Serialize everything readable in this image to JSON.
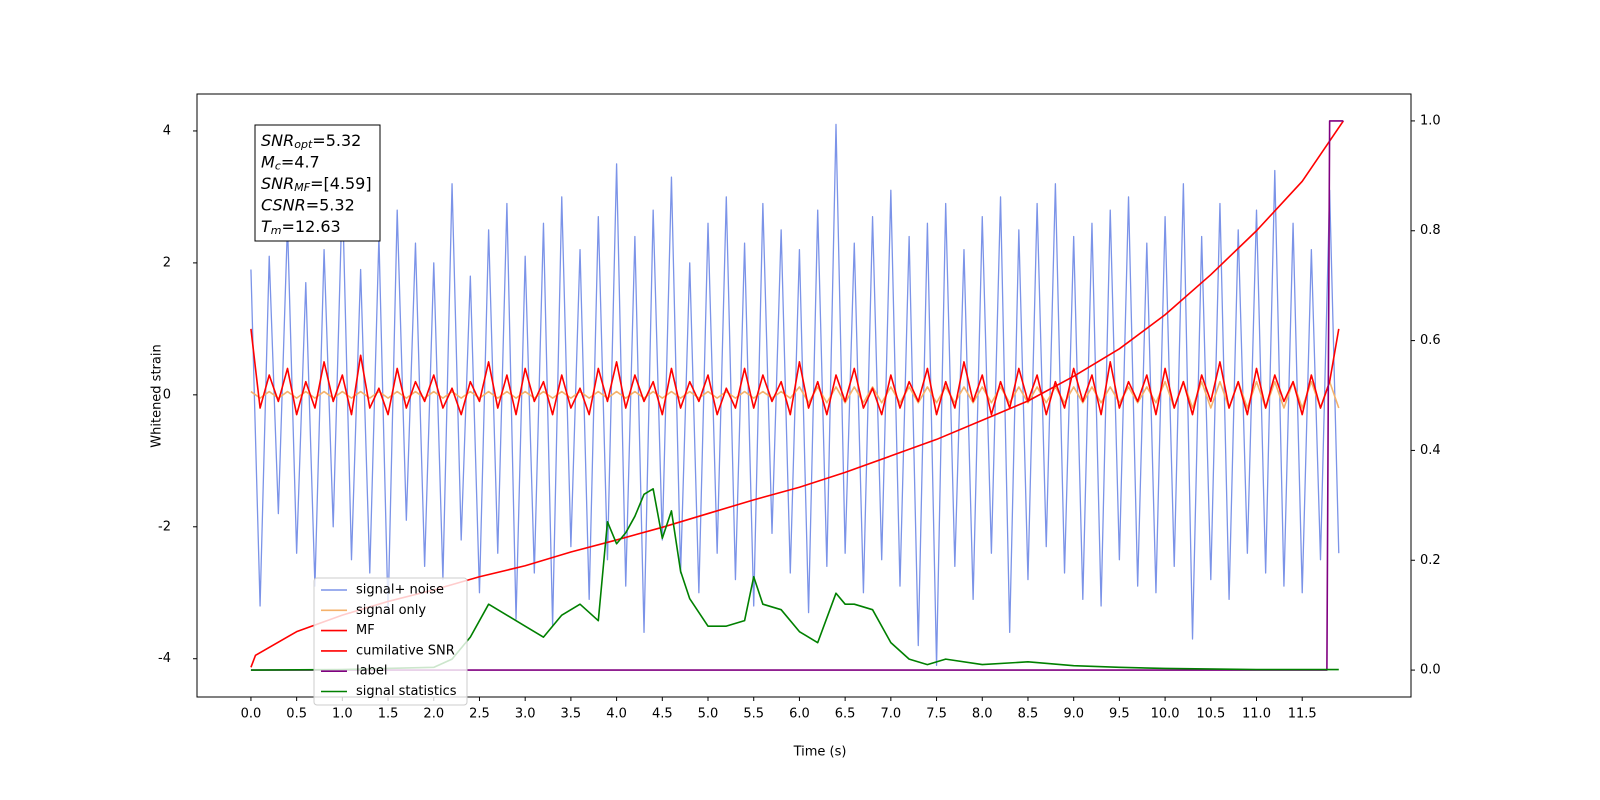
{
  "chart_data": {
    "type": "line",
    "xlabel": "Time (s)",
    "ylabel": "Whitened strain",
    "xlim": [
      -0.59,
      12.69
    ],
    "ylim": [
      -4.58,
      4.56
    ],
    "y2lim": [
      -0.049,
      1.049
    ],
    "xticks": [
      {
        "value": 0,
        "label": "0.0"
      },
      0.5,
      {
        "value": 1,
        "label": "1.0"
      },
      1.5,
      {
        "value": 2,
        "label": "2.0"
      },
      2.5,
      {
        "value": 3,
        "label": "3.0"
      },
      3.5,
      {
        "value": 4,
        "label": "4.0"
      },
      4.5,
      {
        "value": 5,
        "label": "5.0"
      },
      5.5,
      {
        "value": 6,
        "label": "6.0"
      },
      6.5,
      {
        "value": 7,
        "label": "7.0"
      },
      7.5,
      {
        "value": 8,
        "label": "8.0"
      },
      8.5,
      {
        "value": 9,
        "label": "9.0"
      },
      9.5,
      {
        "value": 10,
        "label": "10.0"
      },
      10.5,
      {
        "value": 11,
        "label": "11.0"
      },
      11.5
    ],
    "yticks": [
      -4,
      -2,
      0,
      2,
      4
    ],
    "y2ticks": [
      {
        "value": 0,
        "label": "0.0"
      },
      0.2,
      0.4,
      0.6,
      0.8,
      {
        "value": 1,
        "label": "1.0"
      }
    ],
    "legend": "lower left",
    "annotation": [
      {
        "symbol": "SNR",
        "subscript": "opt",
        "text": "=5.32"
      },
      {
        "symbol": "M",
        "subscript": "c",
        "text": "=4.7"
      },
      {
        "symbol": "SNR",
        "subscript": "MF",
        "text": "=[4.59]"
      },
      {
        "symbol": "CSNR",
        "text": "=5.32"
      },
      {
        "symbol": "T",
        "subscript": "m",
        "text": "=12.63"
      }
    ],
    "x": [
      0,
      0.1,
      0.2,
      0.3,
      0.4,
      0.5,
      0.6,
      0.7,
      0.8,
      0.9,
      1,
      1.1,
      1.2,
      1.3,
      1.4,
      1.5,
      1.6,
      1.7,
      1.8,
      1.9,
      2,
      2.1,
      2.2,
      2.3,
      2.4,
      2.5,
      2.6,
      2.7,
      2.8,
      2.9,
      3,
      3.1,
      3.2,
      3.3,
      3.4,
      3.5,
      3.6,
      3.7,
      3.8,
      3.9,
      4,
      4.1,
      4.2,
      4.3,
      4.4,
      4.5,
      4.6,
      4.7,
      4.8,
      4.9,
      5,
      5.1,
      5.2,
      5.3,
      5.4,
      5.5,
      5.6,
      5.7,
      5.8,
      5.9,
      6,
      6.1,
      6.2,
      6.3,
      6.4,
      6.5,
      6.6,
      6.7,
      6.8,
      6.9,
      7,
      7.1,
      7.2,
      7.3,
      7.4,
      7.5,
      7.6,
      7.7,
      7.8,
      7.9,
      8,
      8.1,
      8.2,
      8.3,
      8.4,
      8.5,
      8.6,
      8.7,
      8.8,
      8.9,
      9,
      9.1,
      9.2,
      9.3,
      9.4,
      9.5,
      9.6,
      9.7,
      9.8,
      9.9,
      10,
      10.1,
      10.2,
      10.3,
      10.4,
      10.5,
      10.6,
      10.7,
      10.8,
      10.9,
      11,
      11.1,
      11.2,
      11.3,
      11.4,
      11.5,
      11.6,
      11.7,
      11.8,
      11.9
    ],
    "series": [
      {
        "name": "signal+ noise",
        "color": "#7b93e8",
        "values": [
          1.9,
          -3.2,
          2.1,
          -1.8,
          2.6,
          -2.4,
          1.7,
          -2.9,
          2.2,
          -2.0,
          3.1,
          -2.5,
          1.9,
          -2.7,
          2.4,
          -3.3,
          2.8,
          -1.9,
          2.3,
          -2.6,
          2.0,
          -2.8,
          3.2,
          -2.2,
          1.8,
          -3.0,
          2.5,
          -2.4,
          2.9,
          -3.4,
          2.1,
          -2.7,
          2.6,
          -3.5,
          3.0,
          -2.3,
          2.2,
          -3.1,
          2.7,
          -2.5,
          3.5,
          -2.9,
          2.4,
          -3.6,
          2.8,
          -2.2,
          3.3,
          -2.7,
          2.0,
          -3.0,
          2.6,
          -2.4,
          3.0,
          -2.8,
          2.3,
          -3.2,
          2.9,
          -2.1,
          2.5,
          -2.7,
          2.2,
          -3.3,
          2.8,
          -2.6,
          4.1,
          -2.4,
          2.3,
          -3.0,
          2.7,
          -2.5,
          3.1,
          -2.9,
          2.4,
          -3.8,
          2.6,
          -4.1,
          2.9,
          -2.6,
          2.2,
          -3.1,
          2.7,
          -2.4,
          3.0,
          -3.6,
          2.5,
          -2.8,
          2.9,
          -2.3,
          3.2,
          -2.7,
          2.4,
          -3.1,
          2.6,
          -3.2,
          2.8,
          -2.5,
          3.0,
          -2.9,
          2.3,
          -3.0,
          2.7,
          -2.6,
          3.2,
          -3.7,
          2.4,
          -2.8,
          2.9,
          -3.1,
          2.5,
          -2.4,
          2.8,
          -2.7,
          3.4,
          -2.9,
          2.6,
          -3.0,
          2.2,
          -2.5,
          3.1,
          -2.4
        ]
      },
      {
        "name": "signal only",
        "color": "#f5b26b",
        "values": [
          0.05,
          -0.05,
          0.05,
          -0.05,
          0.05,
          -0.05,
          0.05,
          -0.05,
          0.05,
          -0.05,
          0.05,
          -0.05,
          0.05,
          -0.05,
          0.05,
          -0.05,
          0.05,
          -0.05,
          0.05,
          -0.05,
          0.05,
          -0.05,
          0.05,
          -0.05,
          0.05,
          -0.05,
          0.05,
          -0.05,
          0.05,
          -0.05,
          0.05,
          -0.05,
          0.05,
          -0.05,
          0.05,
          -0.05,
          0.05,
          -0.05,
          0.05,
          -0.05,
          0.05,
          -0.05,
          0.05,
          -0.05,
          0.05,
          -0.05,
          0.05,
          -0.05,
          0.05,
          -0.05,
          0.05,
          -0.05,
          0.05,
          -0.05,
          0.05,
          -0.05,
          0.05,
          -0.05,
          0.05,
          -0.05,
          0.12,
          -0.12,
          0.12,
          -0.12,
          0.12,
          -0.12,
          0.12,
          -0.12,
          0.12,
          -0.12,
          0.12,
          -0.12,
          0.12,
          -0.12,
          0.12,
          -0.12,
          0.12,
          -0.12,
          0.12,
          -0.12,
          0.12,
          -0.12,
          0.12,
          -0.12,
          0.12,
          -0.12,
          0.12,
          -0.12,
          0.12,
          -0.12,
          0.12,
          -0.12,
          0.12,
          -0.12,
          0.12,
          -0.12,
          0.12,
          -0.12,
          0.12,
          -0.12,
          0.2,
          -0.2,
          0.2,
          -0.2,
          0.2,
          -0.2,
          0.2,
          -0.2,
          0.2,
          -0.2,
          0.2,
          -0.2,
          0.2,
          -0.2,
          0.2,
          -0.2,
          0.2,
          -0.2,
          0.2,
          -0.2
        ]
      },
      {
        "name": "MF",
        "color": "#ff0000",
        "values": [
          1.0,
          -0.2,
          0.3,
          -0.1,
          0.4,
          -0.3,
          0.2,
          -0.2,
          0.5,
          -0.1,
          0.3,
          -0.3,
          0.6,
          -0.2,
          0.1,
          -0.3,
          0.4,
          -0.2,
          0.2,
          -0.1,
          0.3,
          -0.2,
          0.1,
          -0.3,
          0.2,
          -0.1,
          0.5,
          -0.2,
          0.3,
          -0.3,
          0.4,
          -0.1,
          0.2,
          -0.3,
          0.3,
          -0.2,
          0.1,
          -0.3,
          0.4,
          -0.1,
          0.5,
          -0.2,
          0.3,
          -0.1,
          0.2,
          -0.3,
          0.4,
          -0.2,
          0.2,
          -0.1,
          0.3,
          -0.3,
          0.1,
          -0.2,
          0.4,
          -0.2,
          0.3,
          -0.1,
          0.2,
          -0.3,
          0.5,
          -0.2,
          0.2,
          -0.3,
          0.3,
          -0.1,
          0.4,
          -0.2,
          0.1,
          -0.3,
          0.3,
          -0.2,
          0.2,
          -0.1,
          0.4,
          -0.3,
          0.2,
          -0.2,
          0.5,
          -0.1,
          0.3,
          -0.3,
          0.2,
          -0.2,
          0.4,
          -0.1,
          0.3,
          -0.3,
          0.2,
          -0.2,
          0.4,
          -0.1,
          0.3,
          -0.3,
          0.5,
          -0.2,
          0.2,
          -0.1,
          0.3,
          -0.3,
          0.4,
          -0.2,
          0.2,
          -0.3,
          0.3,
          -0.1,
          0.5,
          -0.2,
          0.2,
          -0.3,
          0.4,
          -0.2,
          0.3,
          -0.1,
          0.2,
          -0.3,
          0.3,
          -0.2,
          0.2,
          1.0
        ]
      },
      {
        "name": "cumilative SNR",
        "color": "#ff0000",
        "axis": "y2",
        "x": [
          0,
          0.05,
          0.5,
          1,
          1.5,
          2,
          2.5,
          3,
          3.5,
          4,
          4.5,
          5,
          5.5,
          6,
          6.5,
          7,
          7.5,
          8,
          8.5,
          9,
          9.5,
          10,
          10.5,
          11,
          11.5,
          11.95
        ],
        "values": [
          0.005,
          0.027,
          0.07,
          0.1,
          0.125,
          0.146,
          0.17,
          0.19,
          0.215,
          0.237,
          0.26,
          0.285,
          0.31,
          0.333,
          0.36,
          0.39,
          0.42,
          0.455,
          0.49,
          0.535,
          0.585,
          0.647,
          0.72,
          0.8,
          0.89,
          1.0
        ]
      },
      {
        "name": "label",
        "color": "#800080",
        "axis": "y2",
        "x": [
          0,
          11.77,
          11.8,
          11.95
        ],
        "values": [
          0,
          0,
          1,
          1
        ]
      },
      {
        "name": "signal statistics",
        "color": "#008000",
        "axis": "y2",
        "x": [
          0,
          1,
          2,
          2.2,
          2.4,
          2.6,
          2.8,
          3,
          3.2,
          3.4,
          3.6,
          3.8,
          3.9,
          4.0,
          4.1,
          4.2,
          4.3,
          4.4,
          4.5,
          4.6,
          4.7,
          4.8,
          5,
          5.2,
          5.4,
          5.5,
          5.6,
          5.8,
          6,
          6.2,
          6.4,
          6.5,
          6.6,
          6.8,
          7,
          7.2,
          7.4,
          7.6,
          8,
          8.5,
          9,
          9.5,
          10,
          11,
          11.9
        ],
        "values": [
          0.0,
          0.001,
          0.005,
          0.02,
          0.06,
          0.12,
          0.1,
          0.08,
          0.06,
          0.1,
          0.12,
          0.09,
          0.27,
          0.23,
          0.25,
          0.28,
          0.32,
          0.33,
          0.24,
          0.29,
          0.18,
          0.13,
          0.08,
          0.08,
          0.09,
          0.17,
          0.12,
          0.11,
          0.07,
          0.05,
          0.14,
          0.12,
          0.12,
          0.11,
          0.05,
          0.02,
          0.01,
          0.02,
          0.01,
          0.015,
          0.008,
          0.005,
          0.003,
          0.001,
          0.001
        ]
      }
    ]
  }
}
